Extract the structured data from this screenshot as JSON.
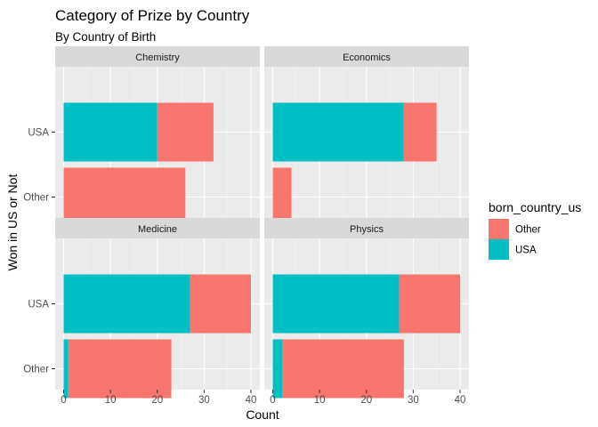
{
  "chart_data": {
    "type": "bar",
    "orientation": "horizontal",
    "stacked": true,
    "faceted": true,
    "title": "Category of Prize by Country",
    "subtitle": "By Country of Birth",
    "xlabel": "Count",
    "ylabel": "Won in US or Not",
    "xlim": [
      0,
      40
    ],
    "x_ticks": [
      "0",
      "10",
      "20",
      "30",
      "40"
    ],
    "categories": [
      "USA",
      "Other"
    ],
    "grid": true,
    "legend": {
      "title": "born_country_us",
      "position": "right",
      "entries": [
        {
          "label": "Other",
          "color": "#F8766D"
        },
        {
          "label": "USA",
          "color": "#00BFC4"
        }
      ]
    },
    "facets": [
      {
        "name": "Chemistry",
        "series": [
          {
            "name": "USA",
            "values": [
              20,
              0
            ]
          },
          {
            "name": "Other",
            "values": [
              12,
              26
            ]
          }
        ]
      },
      {
        "name": "Economics",
        "series": [
          {
            "name": "USA",
            "values": [
              28,
              0
            ]
          },
          {
            "name": "Other",
            "values": [
              7,
              4
            ]
          }
        ]
      },
      {
        "name": "Medicine",
        "series": [
          {
            "name": "USA",
            "values": [
              27,
              1
            ]
          },
          {
            "name": "Other",
            "values": [
              13,
              22
            ]
          }
        ]
      },
      {
        "name": "Physics",
        "series": [
          {
            "name": "USA",
            "values": [
              27,
              2
            ]
          },
          {
            "name": "Other",
            "values": [
              13,
              26
            ]
          }
        ]
      }
    ]
  }
}
